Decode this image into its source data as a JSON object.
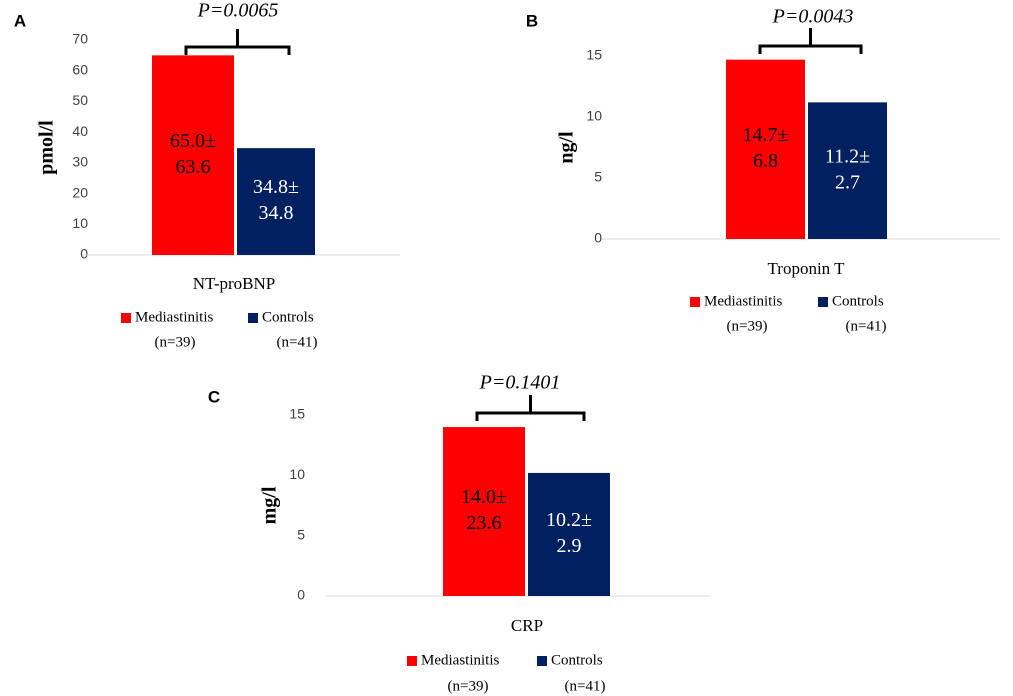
{
  "colors": {
    "mediastinitis": "#ff0000",
    "controls": "#002060",
    "axis": "#d9d9d9",
    "text": "#000000",
    "tick_text": "#404040"
  },
  "chart_data": [
    {
      "panel": "A",
      "type": "bar",
      "categories": [
        "NT-proBNP"
      ],
      "ylabel": "pmol/l",
      "ylim": [
        0,
        70
      ],
      "yticks": [
        0,
        10,
        20,
        30,
        40,
        50,
        60,
        70
      ],
      "series": [
        {
          "name": "Mediastinitis",
          "n_label": "(n=39)",
          "values": [
            65.0
          ],
          "label_lines": [
            "65.0±",
            "63.6"
          ]
        },
        {
          "name": "Controls",
          "n_label": "(n=41)",
          "values": [
            34.8
          ],
          "label_lines": [
            "34.8±",
            "34.8"
          ]
        }
      ],
      "p_value": "P=0.0065"
    },
    {
      "panel": "B",
      "type": "bar",
      "categories": [
        "Troponin T"
      ],
      "ylabel": "ng/l",
      "ylim": [
        0,
        15
      ],
      "yticks": [
        0,
        5,
        10,
        15
      ],
      "series": [
        {
          "name": "Mediastinitis",
          "n_label": "(n=39)",
          "values": [
            14.7
          ],
          "label_lines": [
            "14.7±",
            "6.8"
          ]
        },
        {
          "name": "Controls",
          "n_label": "(n=41)",
          "values": [
            11.2
          ],
          "label_lines": [
            "11.2±",
            "2.7"
          ]
        }
      ],
      "p_value": "P=0.0043"
    },
    {
      "panel": "C",
      "type": "bar",
      "categories": [
        "CRP"
      ],
      "ylabel": "mg/l",
      "ylim": [
        0,
        15
      ],
      "yticks": [
        0,
        5,
        10,
        15
      ],
      "series": [
        {
          "name": "Mediastinitis",
          "n_label": "(n=39)",
          "values": [
            14.0
          ],
          "label_lines": [
            "14.0±",
            "23.6"
          ]
        },
        {
          "name": "Controls",
          "n_label": "(n=41)",
          "values": [
            10.2
          ],
          "label_lines": [
            "10.2±",
            "2.9"
          ]
        }
      ],
      "p_value": "P=0.1401"
    }
  ]
}
